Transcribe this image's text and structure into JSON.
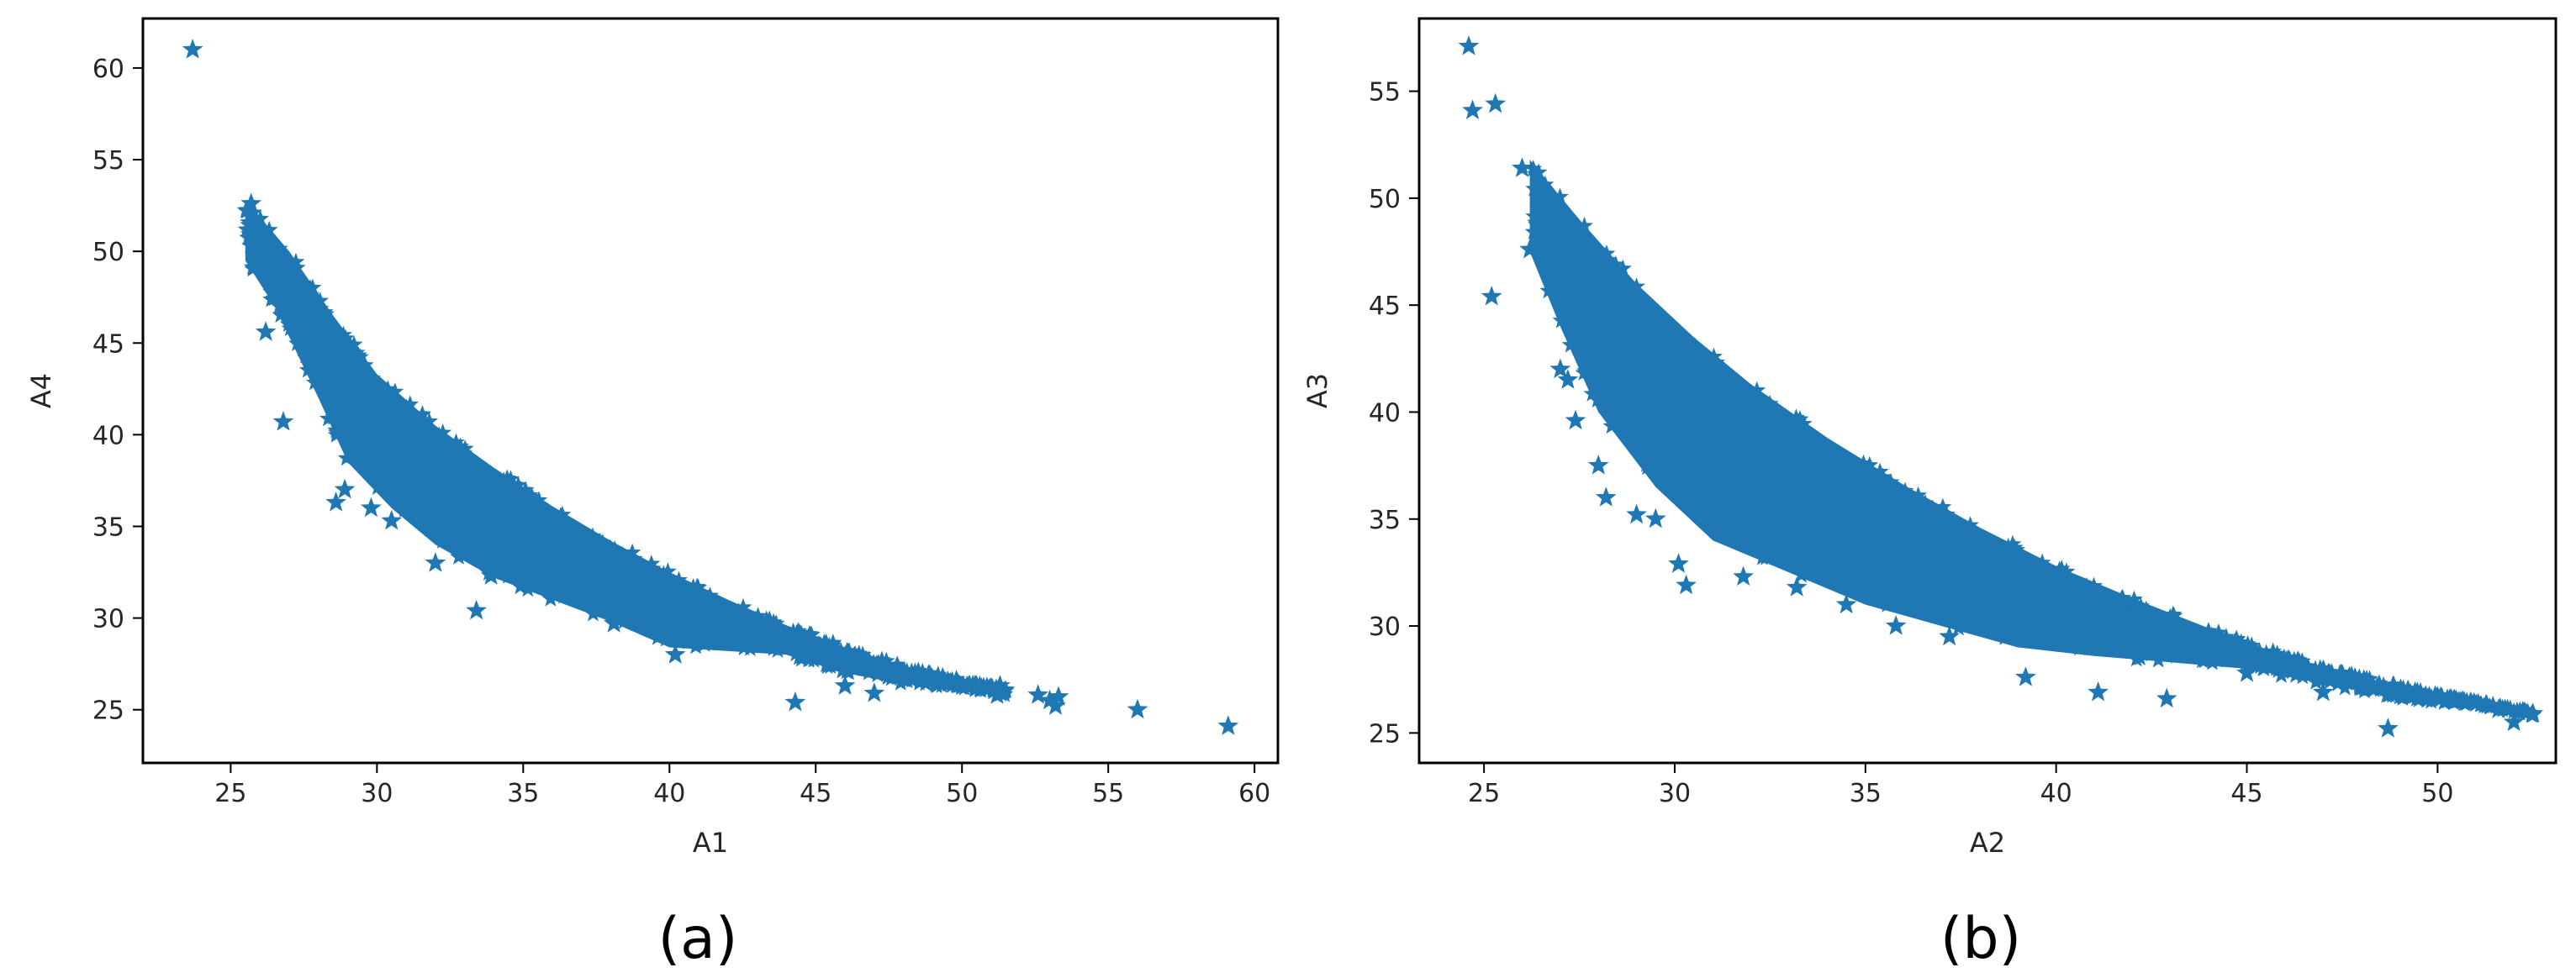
{
  "figure": {
    "captions": [
      "(a)",
      "(b)"
    ]
  },
  "style": {
    "marker_color": "#1f77b4",
    "marker": "star",
    "background": "#ffffff",
    "axes_color": "#000000"
  },
  "chart_data": [
    {
      "type": "scatter",
      "title": "",
      "caption": "(a)",
      "xlabel": "A1",
      "ylabel": "A4",
      "xlim": [
        22,
        60.8
      ],
      "ylim": [
        22.1,
        62.7
      ],
      "xticks": [
        25,
        30,
        35,
        40,
        45,
        50,
        55,
        60
      ],
      "yticks": [
        25,
        30,
        35,
        40,
        45,
        50,
        55,
        60
      ],
      "grid": false,
      "legend": "none",
      "description": "Dense cloud bounded above by a curve roughly A1*A4 ~ 1300, with scattered points below",
      "upper_envelope": [
        [
          25.5,
          52.8
        ],
        [
          27,
          50
        ],
        [
          28.5,
          46.5
        ],
        [
          30,
          43.3
        ],
        [
          32,
          40.5
        ],
        [
          34,
          38.2
        ],
        [
          36,
          36.1
        ],
        [
          38,
          34.2
        ],
        [
          40,
          32.5
        ],
        [
          42,
          31.0
        ],
        [
          44,
          29.6
        ],
        [
          46,
          28.4
        ],
        [
          48,
          27.4
        ],
        [
          50,
          26.6
        ],
        [
          51.5,
          26.1
        ]
      ],
      "lower_envelope": [
        [
          25.5,
          49.5
        ],
        [
          26.5,
          47
        ],
        [
          28,
          42
        ],
        [
          29,
          38.5
        ],
        [
          30.5,
          36
        ],
        [
          32,
          34
        ],
        [
          34,
          32.2
        ],
        [
          36,
          31
        ],
        [
          38,
          29.8
        ],
        [
          40,
          28.4
        ],
        [
          42,
          28.2
        ],
        [
          44,
          28.0
        ],
        [
          46,
          27.0
        ],
        [
          48,
          26.4
        ],
        [
          50,
          26.2
        ],
        [
          51.5,
          25.8
        ]
      ],
      "outliers": [
        [
          23.7,
          61.0
        ],
        [
          25.7,
          52.6
        ],
        [
          26.2,
          45.6
        ],
        [
          26.8,
          40.7
        ],
        [
          28.6,
          36.3
        ],
        [
          28.9,
          37.0
        ],
        [
          29.8,
          36.0
        ],
        [
          30.5,
          35.3
        ],
        [
          32.0,
          33.0
        ],
        [
          33.4,
          30.4
        ],
        [
          33.9,
          32.3
        ],
        [
          38.1,
          29.7
        ],
        [
          40.2,
          28.0
        ],
        [
          44.3,
          25.4
        ],
        [
          46.0,
          26.3
        ],
        [
          47.0,
          25.9
        ],
        [
          48.0,
          26.7
        ],
        [
          51.2,
          25.8
        ],
        [
          51.3,
          26.3
        ],
        [
          52.6,
          25.8
        ],
        [
          53.0,
          25.5
        ],
        [
          53.2,
          25.2
        ],
        [
          53.3,
          25.7
        ],
        [
          56.0,
          25.0
        ],
        [
          59.1,
          24.1
        ]
      ]
    },
    {
      "type": "scatter",
      "title": "",
      "caption": "(b)",
      "xlabel": "A2",
      "ylabel": "A3",
      "xlim": [
        23.3,
        53.1
      ],
      "ylim": [
        23.6,
        58.4
      ],
      "xticks": [
        25,
        30,
        35,
        40,
        45,
        50
      ],
      "yticks": [
        25,
        30,
        35,
        40,
        45,
        50,
        55
      ],
      "grid": false,
      "legend": "none",
      "description": "Dense cloud bounded above by a curve roughly A2*A3 ~ 1350, with scattered points below",
      "upper_envelope": [
        [
          26.2,
          51.8
        ],
        [
          27.5,
          49
        ],
        [
          29,
          46
        ],
        [
          30.5,
          43.5
        ],
        [
          32,
          41.3
        ],
        [
          34,
          38.8
        ],
        [
          36,
          36.6
        ],
        [
          38,
          34.6
        ],
        [
          40,
          32.8
        ],
        [
          42,
          31.3
        ],
        [
          44,
          29.9
        ],
        [
          46,
          28.6
        ],
        [
          48,
          27.6
        ],
        [
          50,
          26.8
        ],
        [
          52.5,
          26.0
        ]
      ],
      "lower_envelope": [
        [
          26.2,
          47.5
        ],
        [
          27,
          44
        ],
        [
          28,
          40
        ],
        [
          29.5,
          36.5
        ],
        [
          31,
          34
        ],
        [
          33,
          32.5
        ],
        [
          35,
          31
        ],
        [
          37,
          30
        ],
        [
          39,
          29
        ],
        [
          41,
          28.6
        ],
        [
          43,
          28.3
        ],
        [
          45,
          28
        ],
        [
          47,
          27.3
        ],
        [
          49,
          26.6
        ],
        [
          51,
          26.3
        ],
        [
          52.5,
          25.8
        ]
      ],
      "outliers": [
        [
          24.6,
          57.1
        ],
        [
          24.7,
          54.1
        ],
        [
          25.3,
          54.4
        ],
        [
          25.2,
          45.4
        ],
        [
          26.0,
          51.4
        ],
        [
          26.2,
          47.6
        ],
        [
          27.0,
          42.0
        ],
        [
          27.2,
          41.5
        ],
        [
          27.4,
          39.6
        ],
        [
          28.0,
          37.5
        ],
        [
          28.2,
          36.0
        ],
        [
          29.0,
          35.2
        ],
        [
          29.5,
          35.0
        ],
        [
          30.1,
          32.9
        ],
        [
          30.3,
          31.9
        ],
        [
          31.8,
          32.3
        ],
        [
          33.2,
          31.8
        ],
        [
          34.5,
          31.0
        ],
        [
          35.8,
          30.0
        ],
        [
          37.2,
          29.5
        ],
        [
          39.2,
          27.6
        ],
        [
          41.1,
          26.9
        ],
        [
          42.9,
          26.6
        ],
        [
          45.0,
          27.8
        ],
        [
          47.0,
          26.9
        ],
        [
          48.7,
          25.2
        ],
        [
          49.1,
          27.0
        ],
        [
          51.6,
          26.1
        ],
        [
          52.0,
          25.5
        ],
        [
          52.5,
          25.9
        ]
      ]
    }
  ]
}
